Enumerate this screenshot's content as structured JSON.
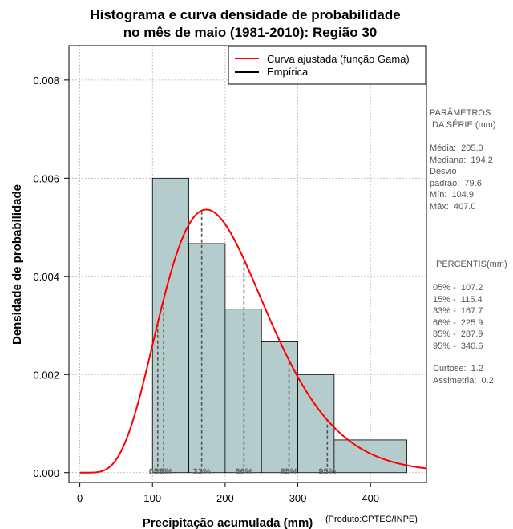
{
  "chart_data": {
    "type": "histogram",
    "title": [
      "Histograma e curva densidade de probabilidade",
      "no mês de maio (1981-2010): Região 30"
    ],
    "xlabel": "Precipitação acumulada (mm)",
    "ylabel": "Densidade de probabilidade",
    "credit": "(Produto:CPTEC/INPE)",
    "xlim": [
      -15,
      477
    ],
    "ylim": [
      -0.0002,
      0.0087
    ],
    "xticks": [
      0,
      100,
      200,
      300,
      400
    ],
    "xtick_labels": [
      "0",
      "100",
      "200",
      "300",
      "400"
    ],
    "yticks": [
      0.0,
      0.002,
      0.004,
      0.006,
      0.008
    ],
    "ytick_labels": [
      "0.000",
      "0.002",
      "0.004",
      "0.006",
      "0.008"
    ],
    "grid": true,
    "bins": [
      {
        "start": 100,
        "end": 150,
        "density": 0.006
      },
      {
        "start": 150,
        "end": 200,
        "density": 0.004667
      },
      {
        "start": 200,
        "end": 250,
        "density": 0.003333
      },
      {
        "start": 250,
        "end": 300,
        "density": 0.002667
      },
      {
        "start": 300,
        "end": 350,
        "density": 0.002
      },
      {
        "start": 350,
        "end": 450,
        "density": 0.000667
      }
    ],
    "bar_color": "#b4cccc",
    "fitted_curve": {
      "name": "Curva ajustada (função Gama)",
      "distribution": "gamma",
      "shape": 6.63,
      "scale": 30.9,
      "color": "#ff0000"
    },
    "empirical_name": "Empírica",
    "empirical_color": "#000000",
    "percentile_lines": [
      {
        "value": 107.2,
        "label": "05%"
      },
      {
        "value": 115.4,
        "label": "15%"
      },
      {
        "value": 167.7,
        "label": "33%"
      },
      {
        "value": 225.9,
        "label": "66%"
      },
      {
        "value": 287.9,
        "label": "85%"
      },
      {
        "value": 340.6,
        "label": "95%"
      }
    ],
    "legend_position": "top-right"
  },
  "side_panel": {
    "params_title": "PARÂMETROS\n DA SÉRIE (mm)",
    "stats": "Média:  205.0\nMediana:  194.2\nDesvio\npadrão:  79.6\nMín:  104.9\nMáx:  407.0",
    "percentis_title": "PERCENTIS(mm)",
    "percentis": "05% -  107.2\n15% -  115.4\n33% -  167.7\n66% -  225.9\n85% -  287.9\n95% -  340.6",
    "shape_stats": "Curtose:  1.2\nAssimetria:  0.2"
  }
}
